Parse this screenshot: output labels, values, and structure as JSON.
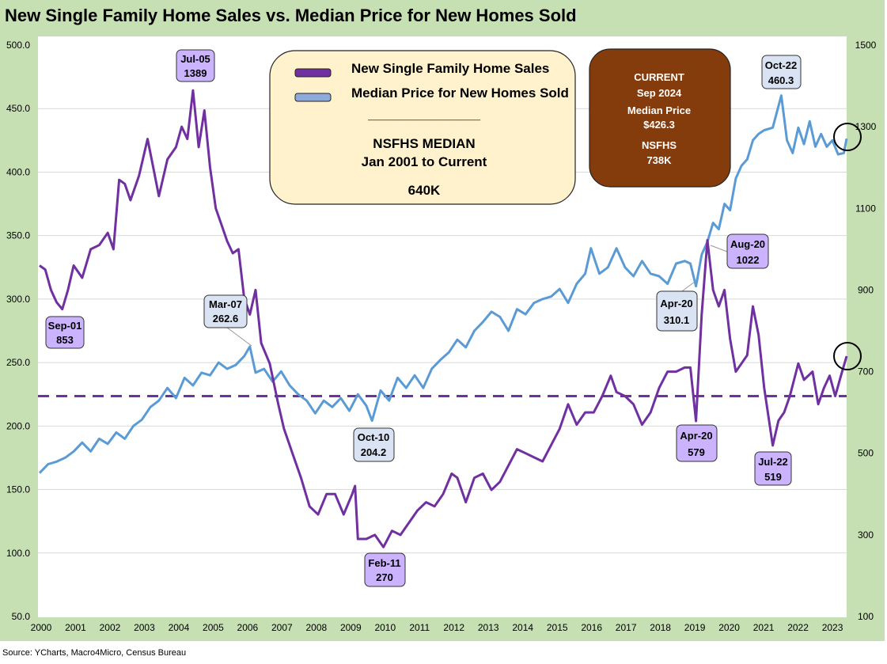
{
  "chart_data": {
    "type": "line",
    "title": "New Single Family Home Sales vs. Median Price for New Homes Sold",
    "source": "Source: YCharts, Macro4Micro, Census Bureau",
    "x_tick_labels": [
      "2000",
      "2001",
      "2002",
      "2003",
      "2004",
      "2005",
      "2006",
      "2007",
      "2008",
      "2009",
      "2010",
      "2011",
      "2012",
      "2013",
      "2014",
      "2015",
      "2016",
      "2017",
      "2018",
      "2019",
      "2020",
      "2021",
      "2022",
      "2023"
    ],
    "y_left": {
      "range": [
        50,
        500
      ],
      "ticks": [
        "50.0",
        "100.0",
        "150.0",
        "200.0",
        "250.0",
        "300.0",
        "350.0",
        "400.0",
        "450.0",
        "500.0"
      ]
    },
    "y_right": {
      "range": [
        100,
        1500
      ],
      "ticks": [
        "100",
        "300",
        "500",
        "700",
        "900",
        "1100",
        "1300",
        "1500"
      ]
    },
    "grid": true,
    "series": [
      {
        "name": "New Single Family Home Sales",
        "axis": "right",
        "unit": "thousands (SAAR)",
        "color": "#7030a0",
        "points": [
          [
            "2001-01",
            960
          ],
          [
            "2001-03",
            950
          ],
          [
            "2001-05",
            900
          ],
          [
            "2001-07",
            870
          ],
          [
            "2001-09",
            853
          ],
          [
            "2001-11",
            900
          ],
          [
            "2002-01",
            960
          ],
          [
            "2002-04",
            930
          ],
          [
            "2002-07",
            1000
          ],
          [
            "2002-10",
            1010
          ],
          [
            "2003-01",
            1040
          ],
          [
            "2003-03",
            1000
          ],
          [
            "2003-05",
            1170
          ],
          [
            "2003-07",
            1160
          ],
          [
            "2003-09",
            1120
          ],
          [
            "2003-12",
            1180
          ],
          [
            "2004-03",
            1270
          ],
          [
            "2004-05",
            1200
          ],
          [
            "2004-07",
            1130
          ],
          [
            "2004-10",
            1220
          ],
          [
            "2005-01",
            1250
          ],
          [
            "2005-03",
            1300
          ],
          [
            "2005-05",
            1270
          ],
          [
            "2005-07",
            1389
          ],
          [
            "2005-09",
            1250
          ],
          [
            "2005-11",
            1340
          ],
          [
            "2006-01",
            1200
          ],
          [
            "2006-03",
            1100
          ],
          [
            "2006-05",
            1060
          ],
          [
            "2006-07",
            1020
          ],
          [
            "2006-09",
            990
          ],
          [
            "2006-11",
            1000
          ],
          [
            "2007-01",
            880
          ],
          [
            "2007-03",
            840
          ],
          [
            "2007-05",
            900
          ],
          [
            "2007-07",
            770
          ],
          [
            "2007-10",
            720
          ],
          [
            "2008-01",
            620
          ],
          [
            "2008-03",
            560
          ],
          [
            "2008-06",
            500
          ],
          [
            "2008-09",
            440
          ],
          [
            "2008-12",
            370
          ],
          [
            "2009-03",
            350
          ],
          [
            "2009-06",
            400
          ],
          [
            "2009-09",
            400
          ],
          [
            "2009-12",
            350
          ],
          [
            "2010-03",
            400
          ],
          [
            "2010-04",
            420
          ],
          [
            "2010-05",
            290
          ],
          [
            "2010-08",
            290
          ],
          [
            "2010-11",
            300
          ],
          [
            "2011-02",
            270
          ],
          [
            "2011-05",
            310
          ],
          [
            "2011-08",
            300
          ],
          [
            "2011-11",
            330
          ],
          [
            "2012-02",
            360
          ],
          [
            "2012-05",
            380
          ],
          [
            "2012-08",
            370
          ],
          [
            "2012-11",
            400
          ],
          [
            "2013-02",
            450
          ],
          [
            "2013-04",
            440
          ],
          [
            "2013-07",
            380
          ],
          [
            "2013-10",
            440
          ],
          [
            "2014-01",
            450
          ],
          [
            "2014-04",
            410
          ],
          [
            "2014-07",
            430
          ],
          [
            "2014-10",
            470
          ],
          [
            "2015-01",
            510
          ],
          [
            "2015-04",
            500
          ],
          [
            "2015-07",
            490
          ],
          [
            "2015-10",
            480
          ],
          [
            "2016-01",
            520
          ],
          [
            "2016-04",
            560
          ],
          [
            "2016-07",
            620
          ],
          [
            "2016-10",
            570
          ],
          [
            "2017-01",
            600
          ],
          [
            "2017-04",
            600
          ],
          [
            "2017-07",
            640
          ],
          [
            "2017-10",
            690
          ],
          [
            "2017-12",
            650
          ],
          [
            "2018-03",
            640
          ],
          [
            "2018-06",
            620
          ],
          [
            "2018-09",
            570
          ],
          [
            "2018-12",
            600
          ],
          [
            "2019-03",
            660
          ],
          [
            "2019-06",
            700
          ],
          [
            "2019-09",
            700
          ],
          [
            "2019-12",
            710
          ],
          [
            "2020-02",
            710
          ],
          [
            "2020-04",
            579
          ],
          [
            "2020-06",
            840
          ],
          [
            "2020-08",
            1022
          ],
          [
            "2020-10",
            900
          ],
          [
            "2020-12",
            860
          ],
          [
            "2021-02",
            900
          ],
          [
            "2021-04",
            780
          ],
          [
            "2021-06",
            700
          ],
          [
            "2021-08",
            720
          ],
          [
            "2021-10",
            740
          ],
          [
            "2021-12",
            860
          ],
          [
            "2022-02",
            790
          ],
          [
            "2022-04",
            660
          ],
          [
            "2022-07",
            519
          ],
          [
            "2022-09",
            580
          ],
          [
            "2022-11",
            600
          ],
          [
            "2023-01",
            640
          ],
          [
            "2023-04",
            720
          ],
          [
            "2023-06",
            680
          ],
          [
            "2023-09",
            700
          ],
          [
            "2023-11",
            620
          ],
          [
            "2024-01",
            660
          ],
          [
            "2024-03",
            690
          ],
          [
            "2024-05",
            640
          ],
          [
            "2024-07",
            690
          ],
          [
            "2024-09",
            738
          ]
        ]
      },
      {
        "name": "Median Price for New Homes Sold",
        "axis": "left",
        "unit": "$ thousands",
        "color": "#5b9bd5",
        "points": [
          [
            "2001-01",
            163
          ],
          [
            "2001-04",
            170
          ],
          [
            "2001-07",
            172
          ],
          [
            "2001-10",
            175
          ],
          [
            "2002-01",
            180
          ],
          [
            "2002-04",
            187
          ],
          [
            "2002-07",
            180
          ],
          [
            "2002-10",
            190
          ],
          [
            "2003-01",
            186
          ],
          [
            "2003-04",
            195
          ],
          [
            "2003-07",
            190
          ],
          [
            "2003-10",
            200
          ],
          [
            "2004-01",
            205
          ],
          [
            "2004-04",
            215
          ],
          [
            "2004-07",
            220
          ],
          [
            "2004-10",
            230
          ],
          [
            "2005-01",
            222
          ],
          [
            "2005-04",
            238
          ],
          [
            "2005-07",
            232
          ],
          [
            "2005-10",
            242
          ],
          [
            "2006-01",
            240
          ],
          [
            "2006-04",
            250
          ],
          [
            "2006-07",
            245
          ],
          [
            "2006-10",
            248
          ],
          [
            "2007-01",
            255
          ],
          [
            "2007-03",
            262.6
          ],
          [
            "2007-05",
            242
          ],
          [
            "2007-08",
            245
          ],
          [
            "2007-11",
            235
          ],
          [
            "2008-02",
            243
          ],
          [
            "2008-05",
            232
          ],
          [
            "2008-08",
            225
          ],
          [
            "2008-11",
            220
          ],
          [
            "2009-02",
            210
          ],
          [
            "2009-05",
            220
          ],
          [
            "2009-08",
            215
          ],
          [
            "2009-11",
            222
          ],
          [
            "2010-02",
            212
          ],
          [
            "2010-05",
            225
          ],
          [
            "2010-08",
            216
          ],
          [
            "2010-10",
            204.2
          ],
          [
            "2011-01",
            228
          ],
          [
            "2011-04",
            220
          ],
          [
            "2011-07",
            238
          ],
          [
            "2011-10",
            230
          ],
          [
            "2012-01",
            240
          ],
          [
            "2012-04",
            230
          ],
          [
            "2012-07",
            245
          ],
          [
            "2012-10",
            252
          ],
          [
            "2013-01",
            258
          ],
          [
            "2013-04",
            268
          ],
          [
            "2013-07",
            262
          ],
          [
            "2013-10",
            275
          ],
          [
            "2014-01",
            282
          ],
          [
            "2014-04",
            290
          ],
          [
            "2014-07",
            286
          ],
          [
            "2014-10",
            275
          ],
          [
            "2015-01",
            292
          ],
          [
            "2015-04",
            288
          ],
          [
            "2015-07",
            297
          ],
          [
            "2015-10",
            300
          ],
          [
            "2016-01",
            302
          ],
          [
            "2016-04",
            308
          ],
          [
            "2016-07",
            297
          ],
          [
            "2016-10",
            312
          ],
          [
            "2017-01",
            320
          ],
          [
            "2017-03",
            340
          ],
          [
            "2017-06",
            320
          ],
          [
            "2017-09",
            325
          ],
          [
            "2017-12",
            340
          ],
          [
            "2018-03",
            325
          ],
          [
            "2018-06",
            318
          ],
          [
            "2018-09",
            330
          ],
          [
            "2018-12",
            320
          ],
          [
            "2019-03",
            318
          ],
          [
            "2019-06",
            312
          ],
          [
            "2019-09",
            328
          ],
          [
            "2019-12",
            330
          ],
          [
            "2020-02",
            328
          ],
          [
            "2020-04",
            310.1
          ],
          [
            "2020-06",
            335
          ],
          [
            "2020-08",
            345
          ],
          [
            "2020-10",
            360
          ],
          [
            "2020-12",
            355
          ],
          [
            "2021-02",
            375
          ],
          [
            "2021-04",
            370
          ],
          [
            "2021-06",
            395
          ],
          [
            "2021-08",
            405
          ],
          [
            "2021-10",
            410
          ],
          [
            "2021-12",
            425
          ],
          [
            "2022-02",
            430
          ],
          [
            "2022-04",
            433
          ],
          [
            "2022-07",
            435
          ],
          [
            "2022-10",
            460.3
          ],
          [
            "2022-12",
            425
          ],
          [
            "2023-02",
            415
          ],
          [
            "2023-04",
            435
          ],
          [
            "2023-06",
            422
          ],
          [
            "2023-08",
            440
          ],
          [
            "2023-10",
            420
          ],
          [
            "2023-12",
            430
          ],
          [
            "2024-02",
            420
          ],
          [
            "2024-04",
            425
          ],
          [
            "2024-06",
            414
          ],
          [
            "2024-08",
            415
          ],
          [
            "2024-09",
            426.3
          ]
        ]
      }
    ],
    "reference_line": {
      "name": "NSFHS Median",
      "axis": "right",
      "value": 640,
      "color": "#7030a0",
      "style": "dashed"
    },
    "legend": {
      "placement": "top-center",
      "items": [
        "New Single Family Home Sales",
        "Median Price for New Homes Sold"
      ],
      "separator": "_______________",
      "median_title": "NSFHS MEDIAN",
      "median_range": "Jan 2001 to Current",
      "median_value": "640K"
    },
    "current_box": {
      "line1": "CURRENT",
      "line2": "Sep 2024",
      "price_label": "Median Price",
      "price_value": "$426.3",
      "sales_label": "NSFHS",
      "sales_value": "738K"
    },
    "annotations": [
      {
        "id": "sep01",
        "date": "Sep-01",
        "value": "853",
        "series": "sales"
      },
      {
        "id": "jul05",
        "date": "Jul-05",
        "value": "1389",
        "series": "sales"
      },
      {
        "id": "mar07",
        "date": "Mar-07",
        "value": "262.6",
        "series": "price"
      },
      {
        "id": "oct10",
        "date": "Oct-10",
        "value": "204.2",
        "series": "price"
      },
      {
        "id": "feb11",
        "date": "Feb-11",
        "value": "270",
        "series": "sales"
      },
      {
        "id": "apr20p",
        "date": "Apr-20",
        "value": "310.1",
        "series": "price"
      },
      {
        "id": "aug20",
        "date": "Aug-20",
        "value": "1022",
        "series": "sales"
      },
      {
        "id": "apr20s",
        "date": "Apr-20",
        "value": "579",
        "series": "sales"
      },
      {
        "id": "jul22",
        "date": "Jul-22",
        "value": "519",
        "series": "sales"
      },
      {
        "id": "oct22",
        "date": "Oct-22",
        "value": "460.3",
        "series": "price"
      }
    ]
  }
}
